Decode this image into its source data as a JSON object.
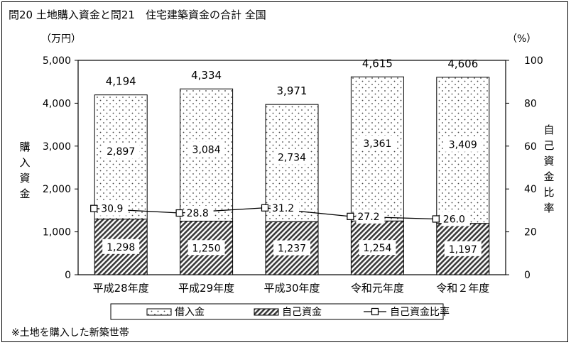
{
  "title": "問20 土地購入資金と問21　住宅建築資金の合計 全国",
  "unit_left": "（万円）",
  "unit_right": "（%）",
  "ylabel_left": "購入資金",
  "ylabel_right": "自己資金比率",
  "footnote": "※土地を購入した新築世帯",
  "legend": {
    "borrow": "借入金",
    "own": "自己資金",
    "ratio": "自己資金比率"
  },
  "colors": {
    "bar_outline": "#000000",
    "line": "#000000",
    "background": "#ffffff"
  },
  "chart_data": {
    "type": "bar",
    "stacked": true,
    "categories": [
      "平成28年度",
      "平成29年度",
      "平成30年度",
      "令和元年度",
      "令和２年度"
    ],
    "series": [
      {
        "name": "自己資金",
        "values": [
          1298,
          1250,
          1237,
          1254,
          1197
        ],
        "labels": [
          "1,298",
          "1,250",
          "1,237",
          "1,254",
          "1,197"
        ],
        "pattern": "diagonal-hatch"
      },
      {
        "name": "借入金",
        "values": [
          2897,
          3084,
          2734,
          3361,
          3409
        ],
        "labels": [
          "2,897",
          "3,084",
          "2,734",
          "3,361",
          "3,409"
        ],
        "pattern": "dots"
      }
    ],
    "totals": [
      4194,
      4334,
      3971,
      4615,
      4606
    ],
    "total_labels": [
      "4,194",
      "4,334",
      "3,971",
      "4,615",
      "4,606"
    ],
    "line_series": {
      "name": "自己資金比率",
      "values": [
        30.9,
        28.8,
        31.2,
        27.2,
        26.0
      ],
      "labels": [
        "30.9",
        "28.8",
        "31.2",
        "27.2",
        "26.0"
      ],
      "axis": "right"
    },
    "ylim": [
      0,
      5000
    ],
    "yticks": [
      0,
      1000,
      2000,
      3000,
      4000,
      5000
    ],
    "ytick_labels": [
      "0",
      "1,000",
      "2,000",
      "3,000",
      "4,000",
      "5,000"
    ],
    "y2lim": [
      0,
      100
    ],
    "y2ticks": [
      0,
      20,
      40,
      60,
      80,
      100
    ],
    "y2tick_labels": [
      "0",
      "20",
      "40",
      "60",
      "80",
      "100"
    ],
    "legend_position": "bottom"
  }
}
